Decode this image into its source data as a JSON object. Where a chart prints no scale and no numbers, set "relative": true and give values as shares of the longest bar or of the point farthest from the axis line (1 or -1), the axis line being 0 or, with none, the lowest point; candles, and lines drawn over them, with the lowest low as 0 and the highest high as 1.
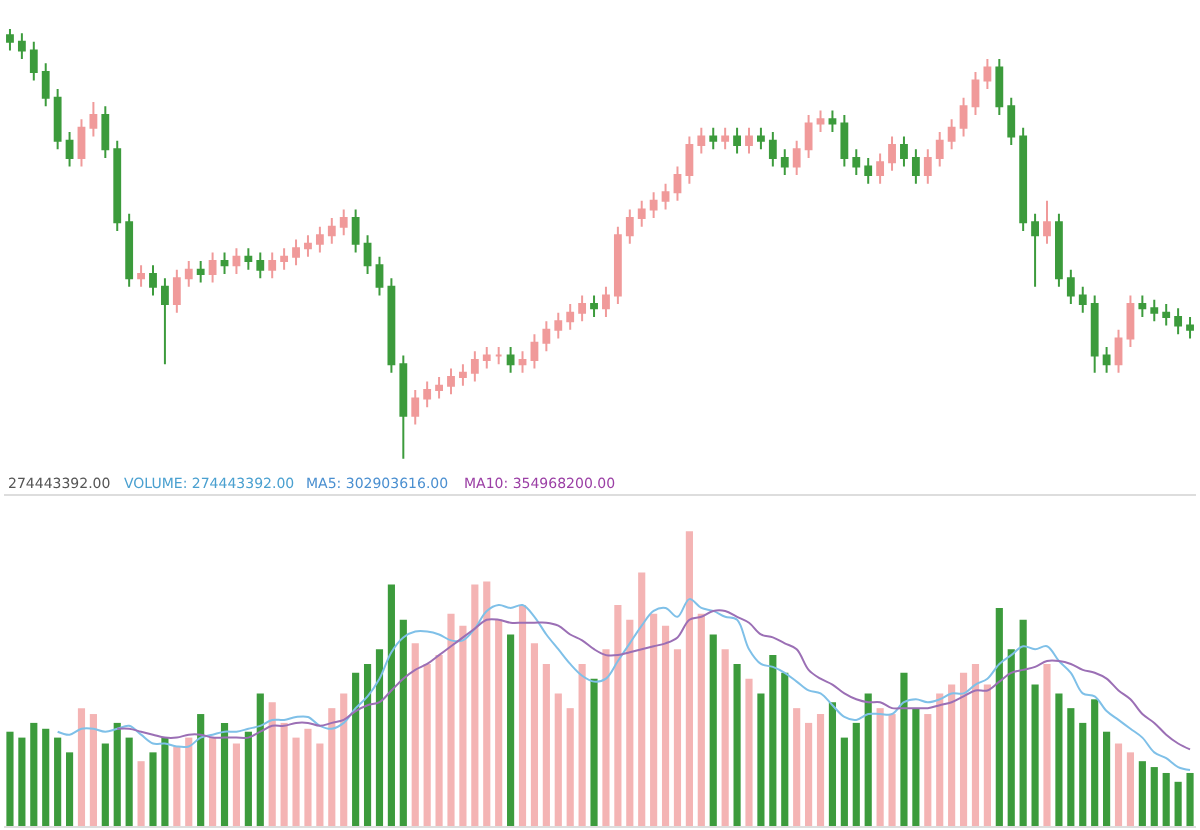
{
  "chart_data": [
    {
      "type": "candlestick",
      "relative": true,
      "colors": [
        "#3c9b3c",
        "#3c9b3c",
        "#3c9b3c",
        "#3c9b3c",
        "#3c9b3c",
        "#3c9b3c",
        "#f09a9a",
        "#f09a9a",
        "#3c9b3c",
        "#3c9b3c",
        "#3c9b3c",
        "#f09a9a",
        "#3c9b3c",
        "#3c9b3c",
        "#f09a9a",
        "#f09a9a",
        "#3c9b3c",
        "#f09a9a",
        "#3c9b3c",
        "#f09a9a",
        "#3c9b3c",
        "#3c9b3c",
        "#f09a9a",
        "#f09a9a",
        "#f09a9a",
        "#f09a9a",
        "#f09a9a",
        "#f09a9a",
        "#f09a9a",
        "#3c9b3c",
        "#3c9b3c",
        "#3c9b3c",
        "#3c9b3c",
        "#3c9b3c",
        "#f09a9a",
        "#f09a9a",
        "#f09a9a",
        "#f09a9a",
        "#f09a9a",
        "#f09a9a",
        "#f09a9a",
        "#f09a9a",
        "#3c9b3c",
        "#f09a9a",
        "#f09a9a",
        "#f09a9a",
        "#f09a9a",
        "#f09a9a",
        "#f09a9a",
        "#3c9b3c",
        "#f09a9a",
        "#f09a9a",
        "#f09a9a",
        "#f09a9a",
        "#f09a9a",
        "#f09a9a",
        "#f09a9a",
        "#f09a9a",
        "#f09a9a",
        "#3c9b3c",
        "#f09a9a",
        "#3c9b3c",
        "#f09a9a",
        "#3c9b3c",
        "#3c9b3c",
        "#3c9b3c",
        "#f09a9a",
        "#f09a9a",
        "#f09a9a",
        "#3c9b3c",
        "#3c9b3c",
        "#3c9b3c",
        "#3c9b3c",
        "#f09a9a",
        "#f09a9a",
        "#3c9b3c",
        "#3c9b3c",
        "#f09a9a",
        "#f09a9a",
        "#f09a9a",
        "#f09a9a",
        "#f09a9a",
        "#f09a9a",
        "#3c9b3c",
        "#3c9b3c",
        "#3c9b3c",
        "#3c9b3c",
        "#f09a9a",
        "#3c9b3c",
        "#3c9b3c",
        "#3c9b3c",
        "#3c9b3c",
        "#3c9b3c",
        "#f09a9a",
        "#f09a9a",
        "#3c9b3c",
        "#3c9b3c",
        "#3c9b3c",
        "#3c9b3c",
        "#3c9b3c"
      ],
      "categories": [
        null,
        null,
        null,
        null,
        null,
        null,
        null,
        null,
        null,
        null,
        null,
        null,
        null,
        null,
        null,
        null,
        null,
        null,
        null,
        null,
        null,
        null,
        null,
        null,
        null,
        null,
        null,
        null,
        null,
        null,
        null,
        null,
        null,
        null,
        null,
        null,
        null,
        null,
        null,
        null,
        null,
        null,
        null,
        null,
        null,
        null,
        null,
        null,
        null,
        null,
        null,
        null,
        null,
        null,
        null,
        null,
        null,
        null,
        null,
        null,
        null,
        null,
        null,
        null,
        null,
        null,
        null,
        null,
        null,
        null,
        null,
        null,
        null,
        null,
        null,
        null,
        null,
        null,
        null,
        null,
        null,
        null,
        null,
        null,
        null,
        null,
        null,
        null,
        null,
        null,
        null,
        null,
        null,
        null,
        null,
        null,
        null,
        null,
        null,
        null
      ],
      "ohlc": [
        [
          0.985,
          1.0,
          0.95,
          0.97
        ],
        [
          0.97,
          0.99,
          0.93,
          0.95
        ],
        [
          0.95,
          0.97,
          0.88,
          0.9
        ],
        [
          0.9,
          0.92,
          0.82,
          0.84
        ],
        [
          0.84,
          0.86,
          0.72,
          0.74
        ],
        [
          0.74,
          0.76,
          0.68,
          0.7
        ],
        [
          0.7,
          0.79,
          0.68,
          0.77
        ],
        [
          0.77,
          0.83,
          0.75,
          0.8
        ],
        [
          0.8,
          0.82,
          0.7,
          0.72
        ],
        [
          0.72,
          0.74,
          0.53,
          0.55
        ],
        [
          0.55,
          0.57,
          0.4,
          0.42
        ],
        [
          0.42,
          0.45,
          0.4,
          0.43
        ],
        [
          0.43,
          0.45,
          0.38,
          0.4
        ],
        [
          0.4,
          0.42,
          0.22,
          0.36
        ],
        [
          0.36,
          0.44,
          0.34,
          0.42
        ],
        [
          0.42,
          0.46,
          0.4,
          0.44
        ],
        [
          0.44,
          0.46,
          0.41,
          0.43
        ],
        [
          0.43,
          0.48,
          0.41,
          0.46
        ],
        [
          0.46,
          0.48,
          0.43,
          0.45
        ],
        [
          0.45,
          0.49,
          0.43,
          0.47
        ],
        [
          0.47,
          0.49,
          0.44,
          0.46
        ],
        [
          0.46,
          0.48,
          0.42,
          0.44
        ],
        [
          0.44,
          0.48,
          0.42,
          0.46
        ],
        [
          0.46,
          0.49,
          0.44,
          0.47
        ],
        [
          0.47,
          0.51,
          0.45,
          0.49
        ],
        [
          0.49,
          0.52,
          0.47,
          0.5
        ],
        [
          0.5,
          0.54,
          0.48,
          0.52
        ],
        [
          0.52,
          0.56,
          0.5,
          0.54
        ],
        [
          0.54,
          0.58,
          0.52,
          0.56
        ],
        [
          0.56,
          0.58,
          0.48,
          0.5
        ],
        [
          0.5,
          0.52,
          0.43,
          0.45
        ],
        [
          0.45,
          0.47,
          0.38,
          0.4
        ],
        [
          0.4,
          0.42,
          0.2,
          0.22
        ],
        [
          0.22,
          0.24,
          0.0,
          0.1
        ],
        [
          0.1,
          0.16,
          0.08,
          0.14
        ],
        [
          0.14,
          0.18,
          0.12,
          0.16
        ],
        [
          0.16,
          0.19,
          0.14,
          0.17
        ],
        [
          0.17,
          0.21,
          0.15,
          0.19
        ],
        [
          0.19,
          0.22,
          0.17,
          0.2
        ],
        [
          0.2,
          0.25,
          0.18,
          0.23
        ],
        [
          0.23,
          0.26,
          0.21,
          0.24
        ],
        [
          0.24,
          0.26,
          0.22,
          0.24
        ],
        [
          0.24,
          0.26,
          0.2,
          0.22
        ],
        [
          0.22,
          0.25,
          0.2,
          0.23
        ],
        [
          0.23,
          0.29,
          0.21,
          0.27
        ],
        [
          0.27,
          0.32,
          0.25,
          0.3
        ],
        [
          0.3,
          0.34,
          0.28,
          0.32
        ],
        [
          0.32,
          0.36,
          0.3,
          0.34
        ],
        [
          0.34,
          0.38,
          0.32,
          0.36
        ],
        [
          0.36,
          0.38,
          0.33,
          0.35
        ],
        [
          0.35,
          0.4,
          0.33,
          0.38
        ],
        [
          0.38,
          0.54,
          0.36,
          0.52
        ],
        [
          0.52,
          0.58,
          0.5,
          0.56
        ],
        [
          0.56,
          0.6,
          0.54,
          0.58
        ],
        [
          0.58,
          0.62,
          0.56,
          0.6
        ],
        [
          0.6,
          0.64,
          0.58,
          0.62
        ],
        [
          0.62,
          0.68,
          0.6,
          0.66
        ],
        [
          0.66,
          0.75,
          0.64,
          0.73
        ],
        [
          0.73,
          0.77,
          0.71,
          0.75
        ],
        [
          0.75,
          0.77,
          0.72,
          0.74
        ],
        [
          0.74,
          0.77,
          0.72,
          0.75
        ],
        [
          0.75,
          0.77,
          0.71,
          0.73
        ],
        [
          0.73,
          0.77,
          0.71,
          0.75
        ],
        [
          0.75,
          0.77,
          0.72,
          0.74
        ],
        [
          0.74,
          0.76,
          0.68,
          0.7
        ],
        [
          0.7,
          0.72,
          0.66,
          0.68
        ],
        [
          0.68,
          0.74,
          0.66,
          0.72
        ],
        [
          0.72,
          0.8,
          0.7,
          0.78
        ],
        [
          0.78,
          0.81,
          0.76,
          0.79
        ],
        [
          0.79,
          0.81,
          0.76,
          0.78
        ],
        [
          0.78,
          0.8,
          0.68,
          0.7
        ],
        [
          0.7,
          0.72,
          0.66,
          0.68
        ],
        [
          0.68,
          0.7,
          0.64,
          0.66
        ],
        [
          0.66,
          0.71,
          0.64,
          0.69
        ],
        [
          0.69,
          0.75,
          0.67,
          0.73
        ],
        [
          0.73,
          0.75,
          0.68,
          0.7
        ],
        [
          0.7,
          0.72,
          0.64,
          0.66
        ],
        [
          0.66,
          0.72,
          0.64,
          0.7
        ],
        [
          0.7,
          0.76,
          0.68,
          0.74
        ],
        [
          0.74,
          0.79,
          0.72,
          0.77
        ],
        [
          0.77,
          0.84,
          0.75,
          0.82
        ],
        [
          0.82,
          0.9,
          0.8,
          0.88
        ],
        [
          0.88,
          0.93,
          0.86,
          0.91
        ],
        [
          0.91,
          0.93,
          0.8,
          0.82
        ],
        [
          0.82,
          0.84,
          0.73,
          0.75
        ],
        [
          0.75,
          0.77,
          0.53,
          0.55
        ],
        [
          0.55,
          0.57,
          0.4,
          0.52
        ],
        [
          0.52,
          0.6,
          0.5,
          0.55
        ],
        [
          0.55,
          0.57,
          0.4,
          0.42
        ],
        [
          0.42,
          0.44,
          0.36,
          0.38
        ],
        [
          0.38,
          0.4,
          0.34,
          0.36
        ],
        [
          0.36,
          0.38,
          0.2,
          0.24
        ],
        [
          0.24,
          0.26,
          0.2,
          0.22
        ],
        [
          0.22,
          0.3,
          0.2,
          0.28
        ],
        [
          0.28,
          0.38,
          0.26,
          0.36
        ],
        [
          0.36,
          0.38,
          0.33,
          0.35
        ],
        [
          0.35,
          0.37,
          0.32,
          0.34
        ],
        [
          0.34,
          0.36,
          0.31,
          0.33
        ],
        [
          0.33,
          0.35,
          0.29,
          0.31
        ],
        [
          0.31,
          0.33,
          0.28,
          0.3
        ]
      ]
    },
    {
      "type": "bar",
      "relative": true,
      "annotations": [
        "274443392.00",
        "VOLUME: 274443392.00",
        "MA5: 302903616.00",
        "MA10: 354968200.00"
      ],
      "categories": [
        null,
        null,
        null,
        null,
        null,
        null,
        null,
        null,
        null,
        null,
        null,
        null,
        null,
        null,
        null,
        null,
        null,
        null,
        null,
        null,
        null,
        null,
        null,
        null,
        null,
        null,
        null,
        null,
        null,
        null,
        null,
        null,
        null,
        null,
        null,
        null,
        null,
        null,
        null,
        null,
        null,
        null,
        null,
        null,
        null,
        null,
        null,
        null,
        null,
        null,
        null,
        null,
        null,
        null,
        null,
        null,
        null,
        null,
        null,
        null,
        null,
        null,
        null,
        null,
        null,
        null,
        null,
        null,
        null,
        null,
        null,
        null,
        null,
        null,
        null,
        null,
        null,
        null,
        null,
        null,
        null,
        null,
        null,
        null,
        null,
        null,
        null,
        null,
        null,
        null,
        null,
        null,
        null,
        null,
        null,
        null,
        null,
        null,
        null,
        null
      ],
      "series": [
        {
          "type": "bar",
          "values": [
            0.32,
            0.3,
            0.35,
            0.33,
            0.3,
            0.25,
            0.4,
            0.38,
            0.28,
            0.35,
            0.3,
            0.22,
            0.25,
            0.3,
            0.27,
            0.3,
            0.38,
            0.3,
            0.35,
            0.28,
            0.32,
            0.45,
            0.42,
            0.35,
            0.3,
            0.33,
            0.28,
            0.4,
            0.45,
            0.52,
            0.55,
            0.6,
            0.82,
            0.7,
            0.62,
            0.55,
            0.58,
            0.72,
            0.68,
            0.82,
            0.83,
            0.7,
            0.65,
            0.75,
            0.62,
            0.55,
            0.45,
            0.4,
            0.55,
            0.5,
            0.6,
            0.75,
            0.7,
            0.86,
            0.72,
            0.68,
            0.6,
            1.0,
            0.72,
            0.65,
            0.6,
            0.55,
            0.5,
            0.45,
            0.58,
            0.52,
            0.4,
            0.35,
            0.38,
            0.42,
            0.3,
            0.35,
            0.45,
            0.4,
            0.38,
            0.52,
            0.4,
            0.38,
            0.45,
            0.48,
            0.52,
            0.55,
            0.48,
            0.74,
            0.6,
            0.7,
            0.48,
            0.55,
            0.45,
            0.4,
            0.35,
            0.43,
            0.32,
            0.28,
            0.25,
            0.22,
            0.2,
            0.18,
            0.15,
            0.18
          ],
          "colors": [
            "#3c9b3c",
            "#3c9b3c",
            "#3c9b3c",
            "#3c9b3c",
            "#3c9b3c",
            "#3c9b3c",
            "#f4b4b4",
            "#f4b4b4",
            "#3c9b3c",
            "#3c9b3c",
            "#3c9b3c",
            "#f4b4b4",
            "#3c9b3c",
            "#3c9b3c",
            "#f4b4b4",
            "#f4b4b4",
            "#3c9b3c",
            "#f4b4b4",
            "#3c9b3c",
            "#f4b4b4",
            "#3c9b3c",
            "#3c9b3c",
            "#f4b4b4",
            "#f4b4b4",
            "#f4b4b4",
            "#f4b4b4",
            "#f4b4b4",
            "#f4b4b4",
            "#f4b4b4",
            "#3c9b3c",
            "#3c9b3c",
            "#3c9b3c",
            "#3c9b3c",
            "#3c9b3c",
            "#f4b4b4",
            "#f4b4b4",
            "#f4b4b4",
            "#f4b4b4",
            "#f4b4b4",
            "#f4b4b4",
            "#f4b4b4",
            "#f4b4b4",
            "#3c9b3c",
            "#f4b4b4",
            "#f4b4b4",
            "#f4b4b4",
            "#f4b4b4",
            "#f4b4b4",
            "#f4b4b4",
            "#3c9b3c",
            "#f4b4b4",
            "#f4b4b4",
            "#f4b4b4",
            "#f4b4b4",
            "#f4b4b4",
            "#f4b4b4",
            "#f4b4b4",
            "#f4b4b4",
            "#f4b4b4",
            "#3c9b3c",
            "#f4b4b4",
            "#3c9b3c",
            "#f4b4b4",
            "#3c9b3c",
            "#3c9b3c",
            "#3c9b3c",
            "#f4b4b4",
            "#f4b4b4",
            "#f4b4b4",
            "#3c9b3c",
            "#3c9b3c",
            "#3c9b3c",
            "#3c9b3c",
            "#f4b4b4",
            "#f4b4b4",
            "#3c9b3c",
            "#3c9b3c",
            "#f4b4b4",
            "#f4b4b4",
            "#f4b4b4",
            "#f4b4b4",
            "#f4b4b4",
            "#f4b4b4",
            "#3c9b3c",
            "#3c9b3c",
            "#3c9b3c",
            "#3c9b3c",
            "#f4b4b4",
            "#3c9b3c",
            "#3c9b3c",
            "#3c9b3c",
            "#3c9b3c",
            "#3c9b3c",
            "#f4b4b4",
            "#f4b4b4",
            "#3c9b3c",
            "#3c9b3c",
            "#3c9b3c",
            "#3c9b3c",
            "#3c9b3c"
          ]
        },
        {
          "type": "line",
          "color": "#7fc0e8",
          "values": [
            null,
            null,
            null,
            null,
            0.32,
            0.31,
            0.33,
            0.33,
            0.32,
            0.33,
            0.34,
            0.31,
            0.28,
            0.28,
            0.27,
            0.27,
            0.3,
            0.31,
            0.32,
            0.32,
            0.33,
            0.34,
            0.36,
            0.36,
            0.37,
            0.37,
            0.34,
            0.33,
            0.35,
            0.4,
            0.44,
            0.5,
            0.59,
            0.64,
            0.66,
            0.66,
            0.65,
            0.63,
            0.63,
            0.67,
            0.73,
            0.75,
            0.74,
            0.75,
            0.71,
            0.65,
            0.6,
            0.55,
            0.51,
            0.49,
            0.5,
            0.56,
            0.62,
            0.68,
            0.73,
            0.74,
            0.71,
            0.77,
            0.74,
            0.73,
            0.71,
            0.7,
            0.6,
            0.55,
            0.54,
            0.52,
            0.49,
            0.46,
            0.45,
            0.41,
            0.37,
            0.36,
            0.38,
            0.38,
            0.38,
            0.42,
            0.43,
            0.42,
            0.43,
            0.45,
            0.45,
            0.48,
            0.5,
            0.55,
            0.58,
            0.61,
            0.6,
            0.61,
            0.56,
            0.52,
            0.45,
            0.44,
            0.39,
            0.36,
            0.33,
            0.3,
            0.25,
            0.23,
            0.2,
            0.19
          ]
        },
        {
          "type": "line",
          "color": "#9b6fb5",
          "values": [
            null,
            null,
            null,
            null,
            null,
            null,
            null,
            null,
            null,
            0.33,
            0.33,
            0.32,
            0.31,
            0.3,
            0.3,
            0.31,
            0.31,
            0.3,
            0.3,
            0.3,
            0.3,
            0.32,
            0.34,
            0.34,
            0.35,
            0.35,
            0.34,
            0.35,
            0.36,
            0.39,
            0.41,
            0.42,
            0.46,
            0.5,
            0.53,
            0.55,
            0.58,
            0.61,
            0.64,
            0.67,
            0.7,
            0.7,
            0.69,
            0.69,
            0.69,
            0.69,
            0.68,
            0.65,
            0.63,
            0.6,
            0.58,
            0.58,
            0.59,
            0.6,
            0.61,
            0.62,
            0.64,
            0.7,
            0.71,
            0.73,
            0.73,
            0.71,
            0.69,
            0.65,
            0.64,
            0.62,
            0.6,
            0.53,
            0.5,
            0.48,
            0.45,
            0.43,
            0.42,
            0.42,
            0.4,
            0.4,
            0.4,
            0.4,
            0.41,
            0.42,
            0.44,
            0.46,
            0.46,
            0.49,
            0.52,
            0.53,
            0.54,
            0.56,
            0.56,
            0.55,
            0.53,
            0.52,
            0.5,
            0.46,
            0.43,
            0.38,
            0.35,
            0.31,
            0.28,
            0.26
          ]
        }
      ]
    }
  ]
}
